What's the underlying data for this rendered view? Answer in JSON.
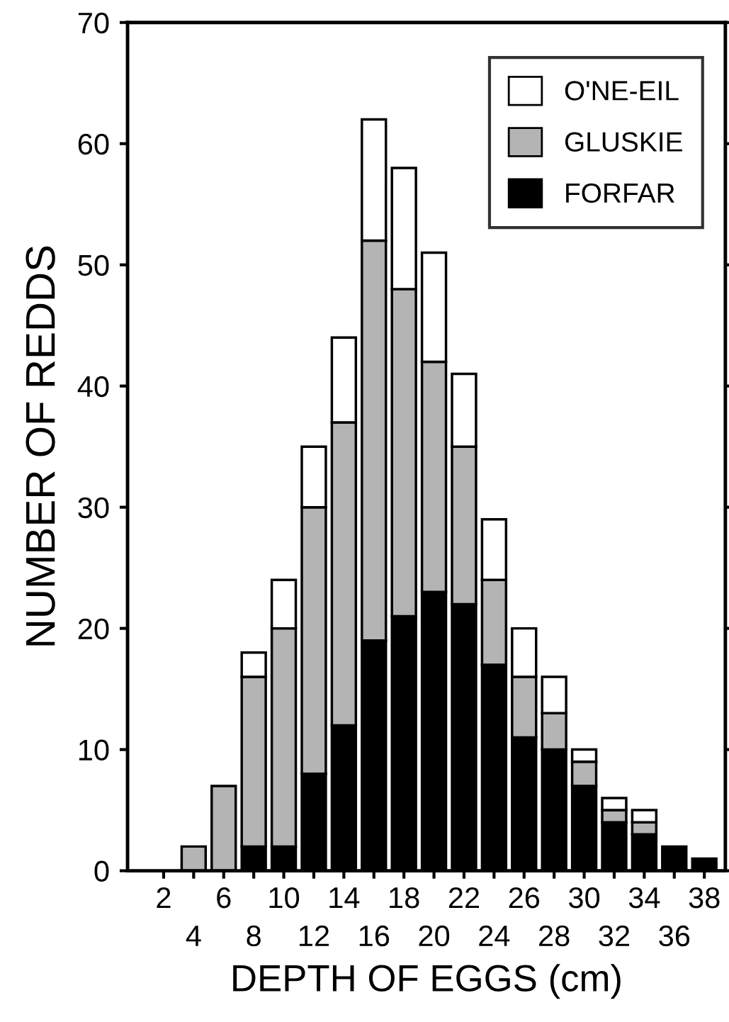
{
  "chart_data": {
    "type": "bar",
    "stacked": true,
    "xlabel": "DEPTH OF EGGS (cm)",
    "ylabel": "NUMBER OF REDDS",
    "categories": [
      "2",
      "4",
      "6",
      "8",
      "10",
      "12",
      "14",
      "16",
      "18",
      "20",
      "22",
      "24",
      "26",
      "28",
      "30",
      "32",
      "34",
      "36",
      "38"
    ],
    "series": [
      {
        "name": "FORFAR",
        "color": "#000000",
        "values": [
          0,
          0,
          0,
          2,
          2,
          8,
          12,
          19,
          21,
          23,
          22,
          17,
          11,
          10,
          7,
          4,
          3,
          2,
          1
        ]
      },
      {
        "name": "GLUSKIE",
        "color": "#b4b4b4",
        "values": [
          0,
          2,
          7,
          14,
          18,
          22,
          25,
          33,
          27,
          19,
          13,
          7,
          5,
          3,
          2,
          1,
          1,
          0,
          0
        ]
      },
      {
        "name": "O'NE-EIL",
        "color": "#ffffff",
        "values": [
          0,
          0,
          0,
          2,
          4,
          5,
          7,
          10,
          10,
          9,
          6,
          5,
          4,
          3,
          1,
          1,
          1,
          0,
          0
        ]
      }
    ],
    "ylim": [
      0,
      70
    ],
    "yticks": [
      0,
      10,
      20,
      30,
      40,
      50,
      60,
      70
    ],
    "grid": false,
    "legend": "top right"
  }
}
